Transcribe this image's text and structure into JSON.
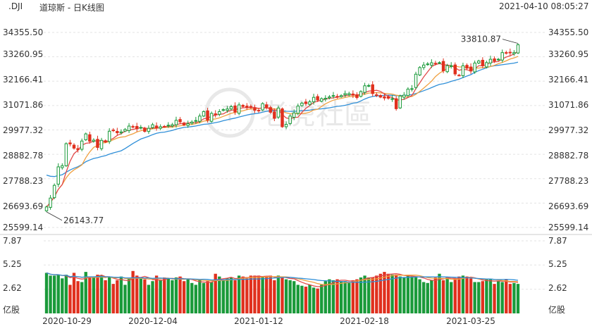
{
  "header": {
    "symbol": ".DJI",
    "name": "道琼斯 - 日K线图",
    "datetime": "2021-04-10 08:05:27"
  },
  "watermark": "老虎社區",
  "colors": {
    "up": "#1a9a3a",
    "down": "#e0301e",
    "ma_short": "#e14b4b",
    "ma_mid": "#f0a040",
    "ma_long": "#2f8fd8",
    "grid": "#e3e3e3",
    "text": "#333333"
  },
  "chart_data": [
    {
      "type": "candlestick",
      "ylim": [
        25599.14,
        34355.5
      ],
      "y_ticks": [
        "34355.50",
        "33260.95",
        "32166.41",
        "31071.86",
        "29977.32",
        "28882.78",
        "27788.23",
        "26693.69",
        "25599.14"
      ],
      "x_ticks": [
        "2020-10-29",
        "2020-12-04",
        "2021-01-12",
        "2021-02-18",
        "2021-03-25"
      ],
      "annotations": [
        {
          "label": "33810.87",
          "kind": "high"
        },
        {
          "label": "26143.77",
          "kind": "low"
        }
      ],
      "grid": true,
      "close": [
        26520,
        26920,
        27490,
        28320,
        28370,
        29360,
        29350,
        29160,
        29090,
        29480,
        29800,
        29470,
        29520,
        29190,
        29510,
        29440,
        29920,
        29950,
        29850,
        29890,
        30000,
        30150,
        30120,
        30030,
        30090,
        29910,
        30050,
        30210,
        30070,
        30120,
        30120,
        30190,
        30210,
        30410,
        30340,
        30200,
        30260,
        30330,
        30400,
        30600,
        30800,
        30420,
        30720,
        30660,
        30800,
        30890,
        30920,
        31020,
        30780,
        31100,
        31030,
        30980,
        30990,
        30860,
        30840,
        31160,
        31000,
        30770,
        30500,
        30960,
        30120,
        30230,
        30600,
        30740,
        31050,
        31180,
        31160,
        31240,
        31440,
        31320,
        31380,
        31400,
        31460,
        31520,
        31470,
        31520,
        31610,
        31610,
        31540,
        31430,
        31700,
        31960,
        31970,
        31610,
        31540,
        31450,
        31410,
        31400,
        31380,
        30930,
        31500,
        31540,
        31810,
        31830,
        32480,
        32780,
        32890,
        32940,
        32990,
        32960,
        33000,
        32630,
        32860,
        32860,
        32490,
        32430,
        32860,
        32750,
        32620,
        32980,
        33070,
        32860,
        33000,
        33150,
        33070,
        33150,
        33450,
        33430,
        33450,
        33450,
        33800
      ],
      "volume": [
        4.4,
        4.1,
        4.1,
        4.2,
        3.8,
        4.2,
        3.1,
        4.4,
        3.5,
        3.4,
        4.5,
        4.0,
        4.0,
        4.2,
        4.1,
        3.6,
        4.0,
        3.2,
        3.6,
        4.0,
        3.1,
        3.8,
        4.6,
        4.1,
        3.9,
        3.7,
        3.1,
        3.5,
        4.1,
        3.6,
        3.9,
        3.8,
        3.6,
        3.9,
        4.0,
        3.5,
        3.7,
        3.3,
        3.1,
        3.6,
        3.3,
        3.5,
        3.4,
        4.3,
        4.0,
        3.6,
        3.8,
        3.9,
        3.6,
        4.1,
        4.0,
        3.8,
        4.1,
        4.1,
        4.1,
        3.9,
        4.0,
        4.1,
        3.6,
        4.1,
        3.9,
        3.7,
        3.6,
        3.5,
        3.1,
        3.0,
        2.9,
        3.1,
        2.8,
        2.7,
        3.1,
        3.5,
        3.7,
        3.6,
        3.7,
        3.5,
        3.5,
        3.3,
        3.6,
        3.7,
        3.9,
        4.1,
        3.9,
        3.9,
        4.1,
        4.3,
        4.5,
        4.3,
        4.2,
        4.2,
        4.0,
        3.9,
        4.1,
        4.0,
        4.0,
        3.7,
        3.4,
        3.3,
        3.6,
        3.9,
        4.3,
        3.6,
        3.9,
        3.4,
        3.8,
        4.0,
        4.1,
        4.0,
        3.8,
        3.4,
        3.4,
        3.5,
        3.7,
        3.7,
        3.2,
        3.5,
        3.4,
        3.7,
        3.2,
        3.3,
        3.2
      ],
      "volume_ylim": [
        0,
        7.87
      ],
      "volume_ticks": [
        "7.87",
        "5.25",
        "2.62"
      ],
      "volume_unit": "亿股"
    }
  ]
}
